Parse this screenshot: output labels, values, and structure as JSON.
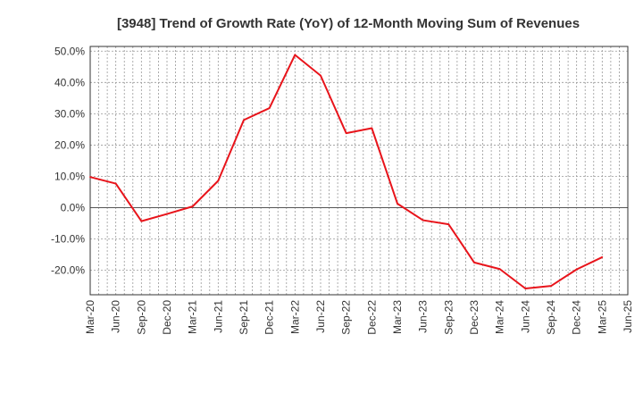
{
  "chart_data": {
    "type": "line",
    "title": "[3948]  Trend of Growth Rate (YoY) of 12-Month Moving Sum of Revenues",
    "xlabel": "",
    "ylabel": "",
    "x_ticks": [
      "Mar-20",
      "Jun-20",
      "Sep-20",
      "Dec-20",
      "Mar-21",
      "Jun-21",
      "Sep-21",
      "Dec-21",
      "Mar-22",
      "Jun-22",
      "Sep-22",
      "Dec-22",
      "Mar-23",
      "Jun-23",
      "Sep-23",
      "Dec-23",
      "Mar-24",
      "Jun-24",
      "Sep-24",
      "Dec-24",
      "Mar-25",
      "Jun-25"
    ],
    "y_ticks": [
      "50.0%",
      "40.0%",
      "30.0%",
      "20.0%",
      "10.0%",
      "0.0%",
      "-10.0%",
      "-20.0%"
    ],
    "y_tick_values": [
      50,
      40,
      30,
      20,
      10,
      0,
      -10,
      -20
    ],
    "ylim": [
      -27.8,
      51.5
    ],
    "grid": true,
    "series": [
      {
        "color": "#e8141b",
        "x": [
          "Mar-20",
          "Jun-20",
          "Sep-20",
          "Dec-20",
          "Mar-21",
          "Jun-21",
          "Sep-21",
          "Dec-21",
          "Mar-22",
          "Jun-22",
          "Sep-22",
          "Dec-22",
          "Mar-23",
          "Jun-23",
          "Sep-23",
          "Dec-23",
          "Mar-24",
          "Jun-24",
          "Sep-24",
          "Dec-24",
          "Mar-25"
        ],
        "values": [
          9.8,
          7.7,
          -4.3,
          -2.0,
          0.4,
          8.6,
          28.0,
          31.8,
          48.8,
          42.2,
          23.8,
          25.4,
          1.3,
          -4.0,
          -5.3,
          -17.5,
          -19.6,
          -25.8,
          -25.0,
          -19.7,
          -15.8
        ]
      }
    ]
  }
}
